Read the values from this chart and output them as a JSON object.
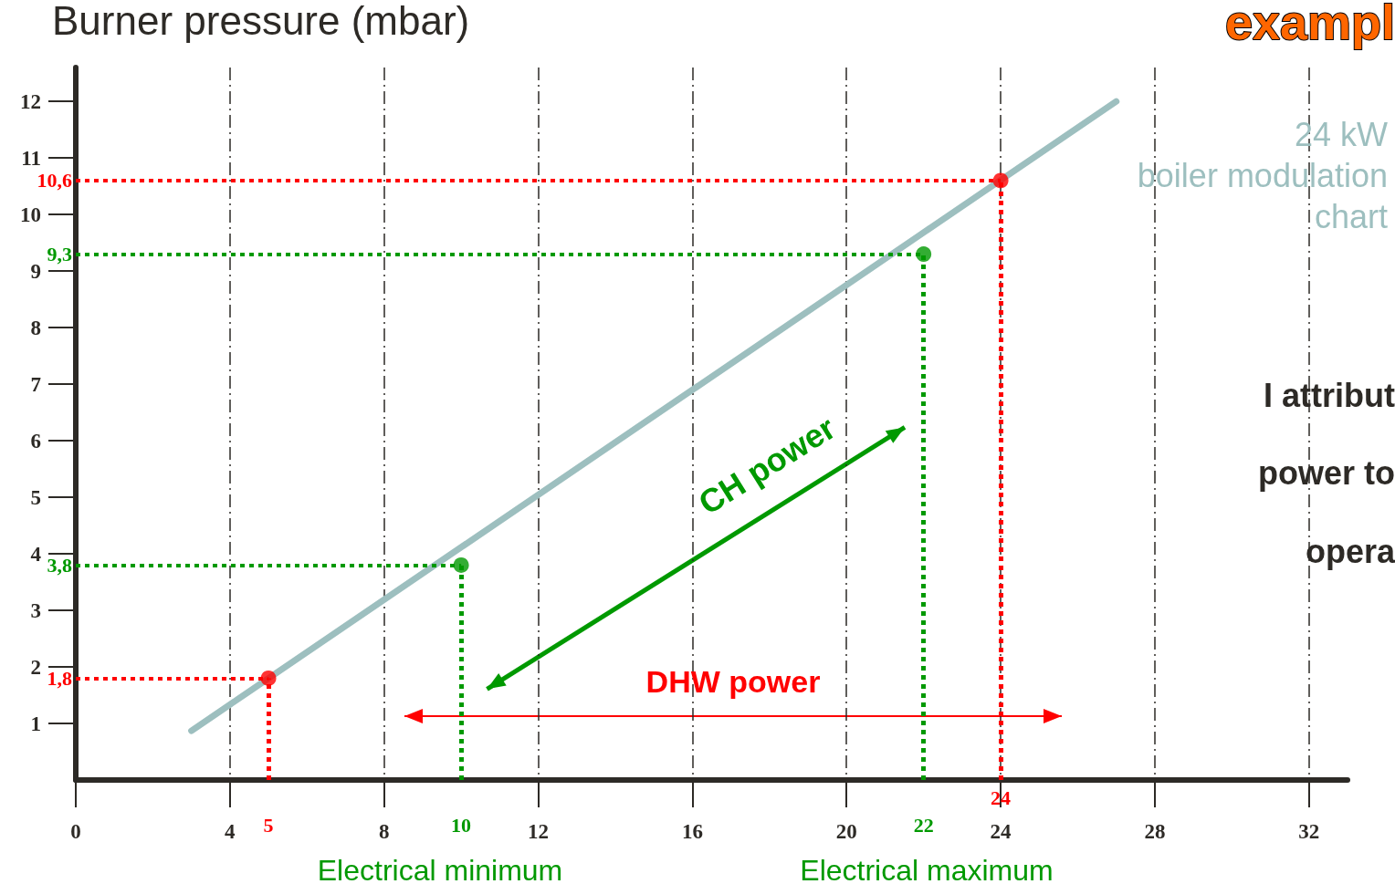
{
  "chart_data": {
    "type": "line",
    "ylabel": "Burner pressure (mbar)",
    "xlim": [
      0,
      33
    ],
    "ylim": [
      0,
      12.6
    ],
    "xticks": [
      0,
      4,
      8,
      12,
      16,
      20,
      24,
      28,
      32
    ],
    "yticks": [
      1,
      2,
      3,
      4,
      5,
      6,
      7,
      8,
      9,
      10,
      11,
      12
    ],
    "grid": "x",
    "series": [
      {
        "color": "#9dbfbf",
        "x": [
          3,
          27
        ],
        "values": [
          0.87,
          12.0
        ],
        "marker": "none"
      },
      {
        "type": "scatter",
        "x": [
          5,
          10,
          22,
          24
        ],
        "values": [
          1.8,
          3.8,
          9.3,
          10.6
        ],
        "colors": [
          "#ff0000",
          "#009900",
          "#009900",
          "#ff0000"
        ],
        "marker": "circle"
      }
    ],
    "ref_lines": [
      {
        "axis": "y",
        "value": 10.6,
        "label": "10,6",
        "color": "#ff0000",
        "line_style": "dotted"
      },
      {
        "axis": "y",
        "value": 9.3,
        "label": "9,3",
        "color": "#009900",
        "line_style": "dotted"
      },
      {
        "axis": "y",
        "value": 3.8,
        "label": "3,8",
        "color": "#009900",
        "line_style": "dotted"
      },
      {
        "axis": "y",
        "value": 1.8,
        "label": "1,8",
        "color": "#ff0000",
        "line_style": "dotted"
      },
      {
        "axis": "x",
        "value": 5,
        "label": "5",
        "color": "#ff0000",
        "line_style": "dotted"
      },
      {
        "axis": "x",
        "value": 10,
        "label": "10",
        "color": "#009900",
        "line_style": "dotted"
      },
      {
        "axis": "x",
        "value": 22,
        "label": "22",
        "color": "#009900",
        "line_style": "dotted"
      },
      {
        "axis": "x",
        "value": 24,
        "label": "24",
        "color": "#ff0000",
        "line_style": "dotted"
      }
    ],
    "annotations": [
      "exampl",
      "24 kW\nboiler modulation\nchart",
      "I attribut",
      "power to",
      "opera",
      "CH power",
      "DHW power",
      "Electrical minimum",
      "Electrical maximum"
    ]
  }
}
